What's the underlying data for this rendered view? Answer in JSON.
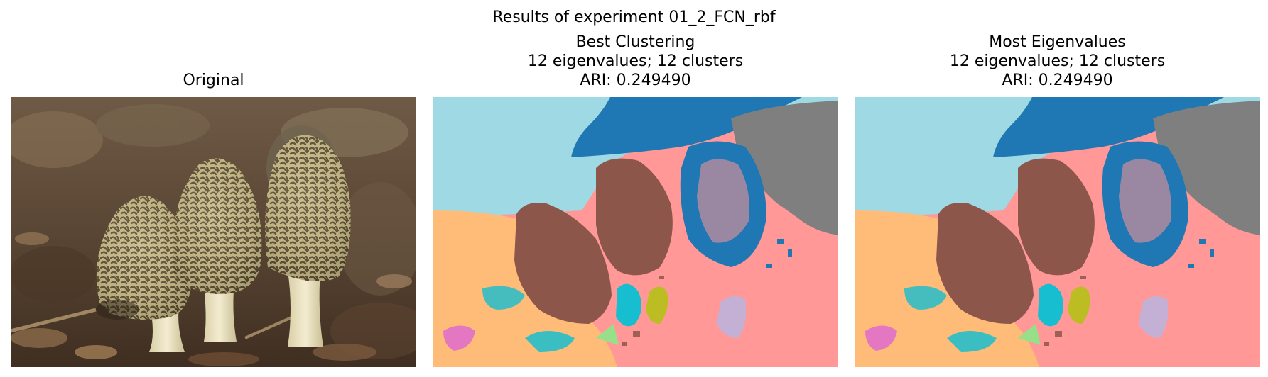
{
  "figure": {
    "suptitle": "Results of experiment 01_2_FCN_rbf",
    "panels": [
      {
        "title_lines": [
          "Original"
        ],
        "image": "photo-morel-mushrooms-on-forest-floor"
      },
      {
        "title_lines": [
          "Best Clustering",
          "12 eigenvalues; 12 clusters",
          "ARI: 0.249490"
        ],
        "image": "segmentation-map"
      },
      {
        "title_lines": [
          "Most Eigenvalues",
          "12 eigenvalues; 12 clusters",
          "ARI: 0.249490"
        ],
        "image": "segmentation-map"
      }
    ]
  },
  "segment_colors": {
    "sky_light_blue": "#9fd9e4",
    "dark_blue": "#1f77b4",
    "gray": "#7f7f7f",
    "salmon": "#ff9896",
    "peach": "#ffbb78",
    "brown": "#8c564b",
    "cyan": "#17becf",
    "olive": "#bcbd22",
    "lavender": "#c5b0d5",
    "light_green": "#98df8a",
    "orchid": "#e377c2"
  }
}
